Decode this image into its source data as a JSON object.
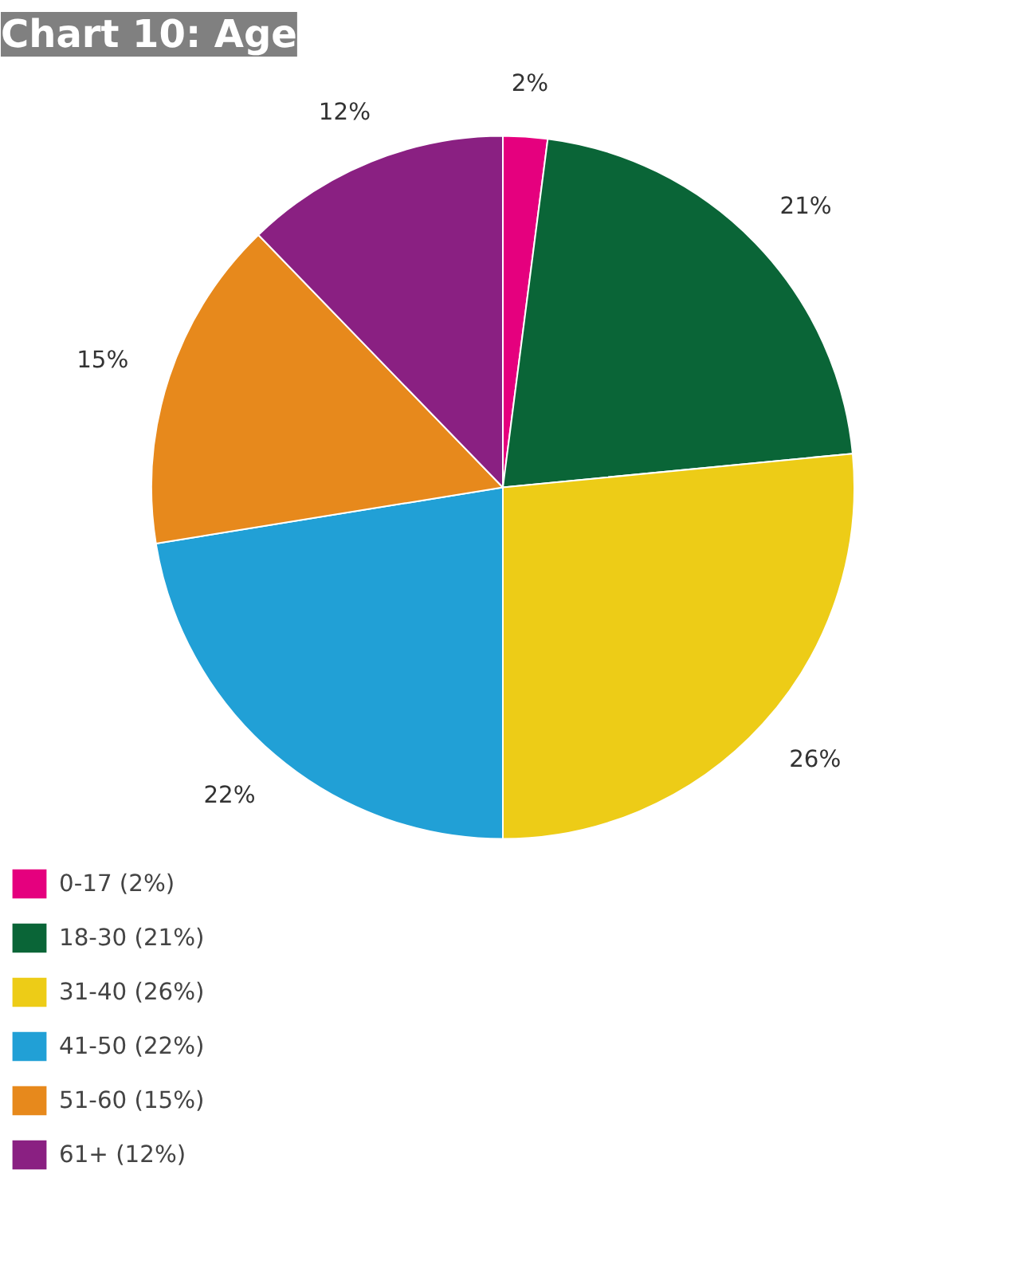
{
  "chart_data": {
    "type": "pie",
    "title": "Chart 10: Age",
    "categories": [
      "0-17 (2%)",
      "18-30 (21%)",
      "31-40 (26%)",
      "41-50 (22%)",
      "51-60 (15%)",
      "61+ (12%)"
    ],
    "values": [
      2,
      21,
      26,
      22,
      15,
      12
    ],
    "value_labels": [
      "2%",
      "21%",
      "26%",
      "22%",
      "15%",
      "12%"
    ],
    "colors": [
      "#e5007e",
      "#0a6537",
      "#edcc17",
      "#21a0d6",
      "#e7891c",
      "#8a2082"
    ],
    "legend": "bottom left"
  }
}
